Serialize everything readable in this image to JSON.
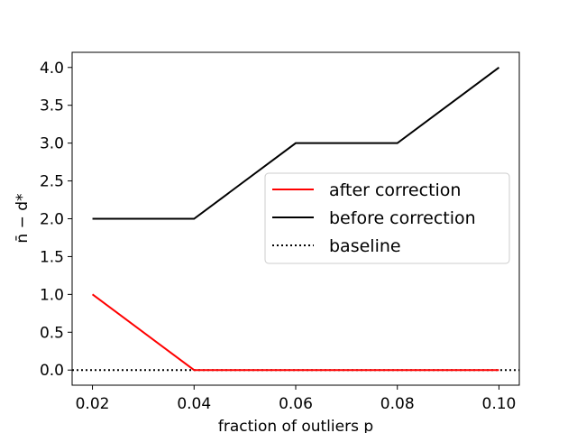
{
  "chart_data": {
    "type": "line",
    "xlabel": "fraction of outliers p",
    "ylabel": "n̄ − d*",
    "x": [
      0.02,
      0.04,
      0.06,
      0.08,
      0.1
    ],
    "xlim": [
      0.016,
      0.104
    ],
    "ylim": [
      -0.2,
      4.2
    ],
    "xticks": [
      0.02,
      0.04,
      0.06,
      0.08,
      0.1
    ],
    "xtick_labels": [
      "0.02",
      "0.04",
      "0.06",
      "0.08",
      "0.10"
    ],
    "yticks": [
      0.0,
      0.5,
      1.0,
      1.5,
      2.0,
      2.5,
      3.0,
      3.5,
      4.0
    ],
    "ytick_labels": [
      "0.0",
      "0.5",
      "1.0",
      "1.5",
      "2.0",
      "2.5",
      "3.0",
      "3.5",
      "4.0"
    ],
    "grid": false,
    "legend_position": "center-right",
    "series": [
      {
        "name": "after correction",
        "color": "#ff0000",
        "style": "solid",
        "values": [
          1,
          0,
          0,
          0,
          0
        ]
      },
      {
        "name": "before correction",
        "color": "#000000",
        "style": "solid",
        "values": [
          2,
          2,
          3,
          3,
          4
        ]
      }
    ],
    "baseline": {
      "name": "baseline",
      "color": "#000000",
      "style": "dotted",
      "y": 0
    }
  }
}
